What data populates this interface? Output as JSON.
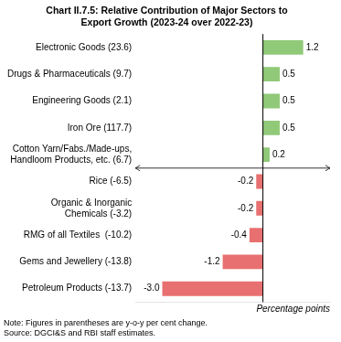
{
  "chart_data": {
    "type": "bar",
    "orientation": "horizontal",
    "title": "Chart II.7.5: Relative Contribution of Major Sectors to\nExport Growth (2023-24 over 2022-23)",
    "categories": [
      "Electronic Goods (23.6)",
      "Drugs & Pharmaceuticals (9.7)",
      "Engineering Goods (2.1)",
      "Iron Ore (117.7)",
      "Cotton Yarn/Fabs./Made-ups,\nHandloom Products, etc. (6.7)",
      "Rice (-6.5)",
      "Organic & Inorganic\nChemicals (-3.2)",
      "RMG of all Textiles  (-10.2)",
      "Gems and Jewellery (-13.8)",
      "Petroleum Products (-13.7)"
    ],
    "values": [
      1.2,
      0.5,
      0.5,
      0.5,
      0.2,
      -0.2,
      -0.2,
      -0.4,
      -1.2,
      -3.0
    ],
    "value_labels": [
      "1.2",
      "0.5",
      "0.5",
      "0.5",
      "0.2",
      "-0.2",
      "-0.2",
      "-0.4",
      "-1.2",
      "-3.0"
    ],
    "colors": [
      "#90c978",
      "#90c978",
      "#90c978",
      "#90c978",
      "#90c978",
      "#e87070",
      "#e87070",
      "#e87070",
      "#e87070",
      "#e87070"
    ],
    "data_labels": true,
    "xlabel": "Percentage points",
    "note": "Note: Figures in parentheses are y-o-y per cent change.\nSource: DGCI&S and RBI staff estimates.",
    "xlim": [
      -3.8,
      2.0
    ],
    "grid": false,
    "tick_labels": "y"
  }
}
